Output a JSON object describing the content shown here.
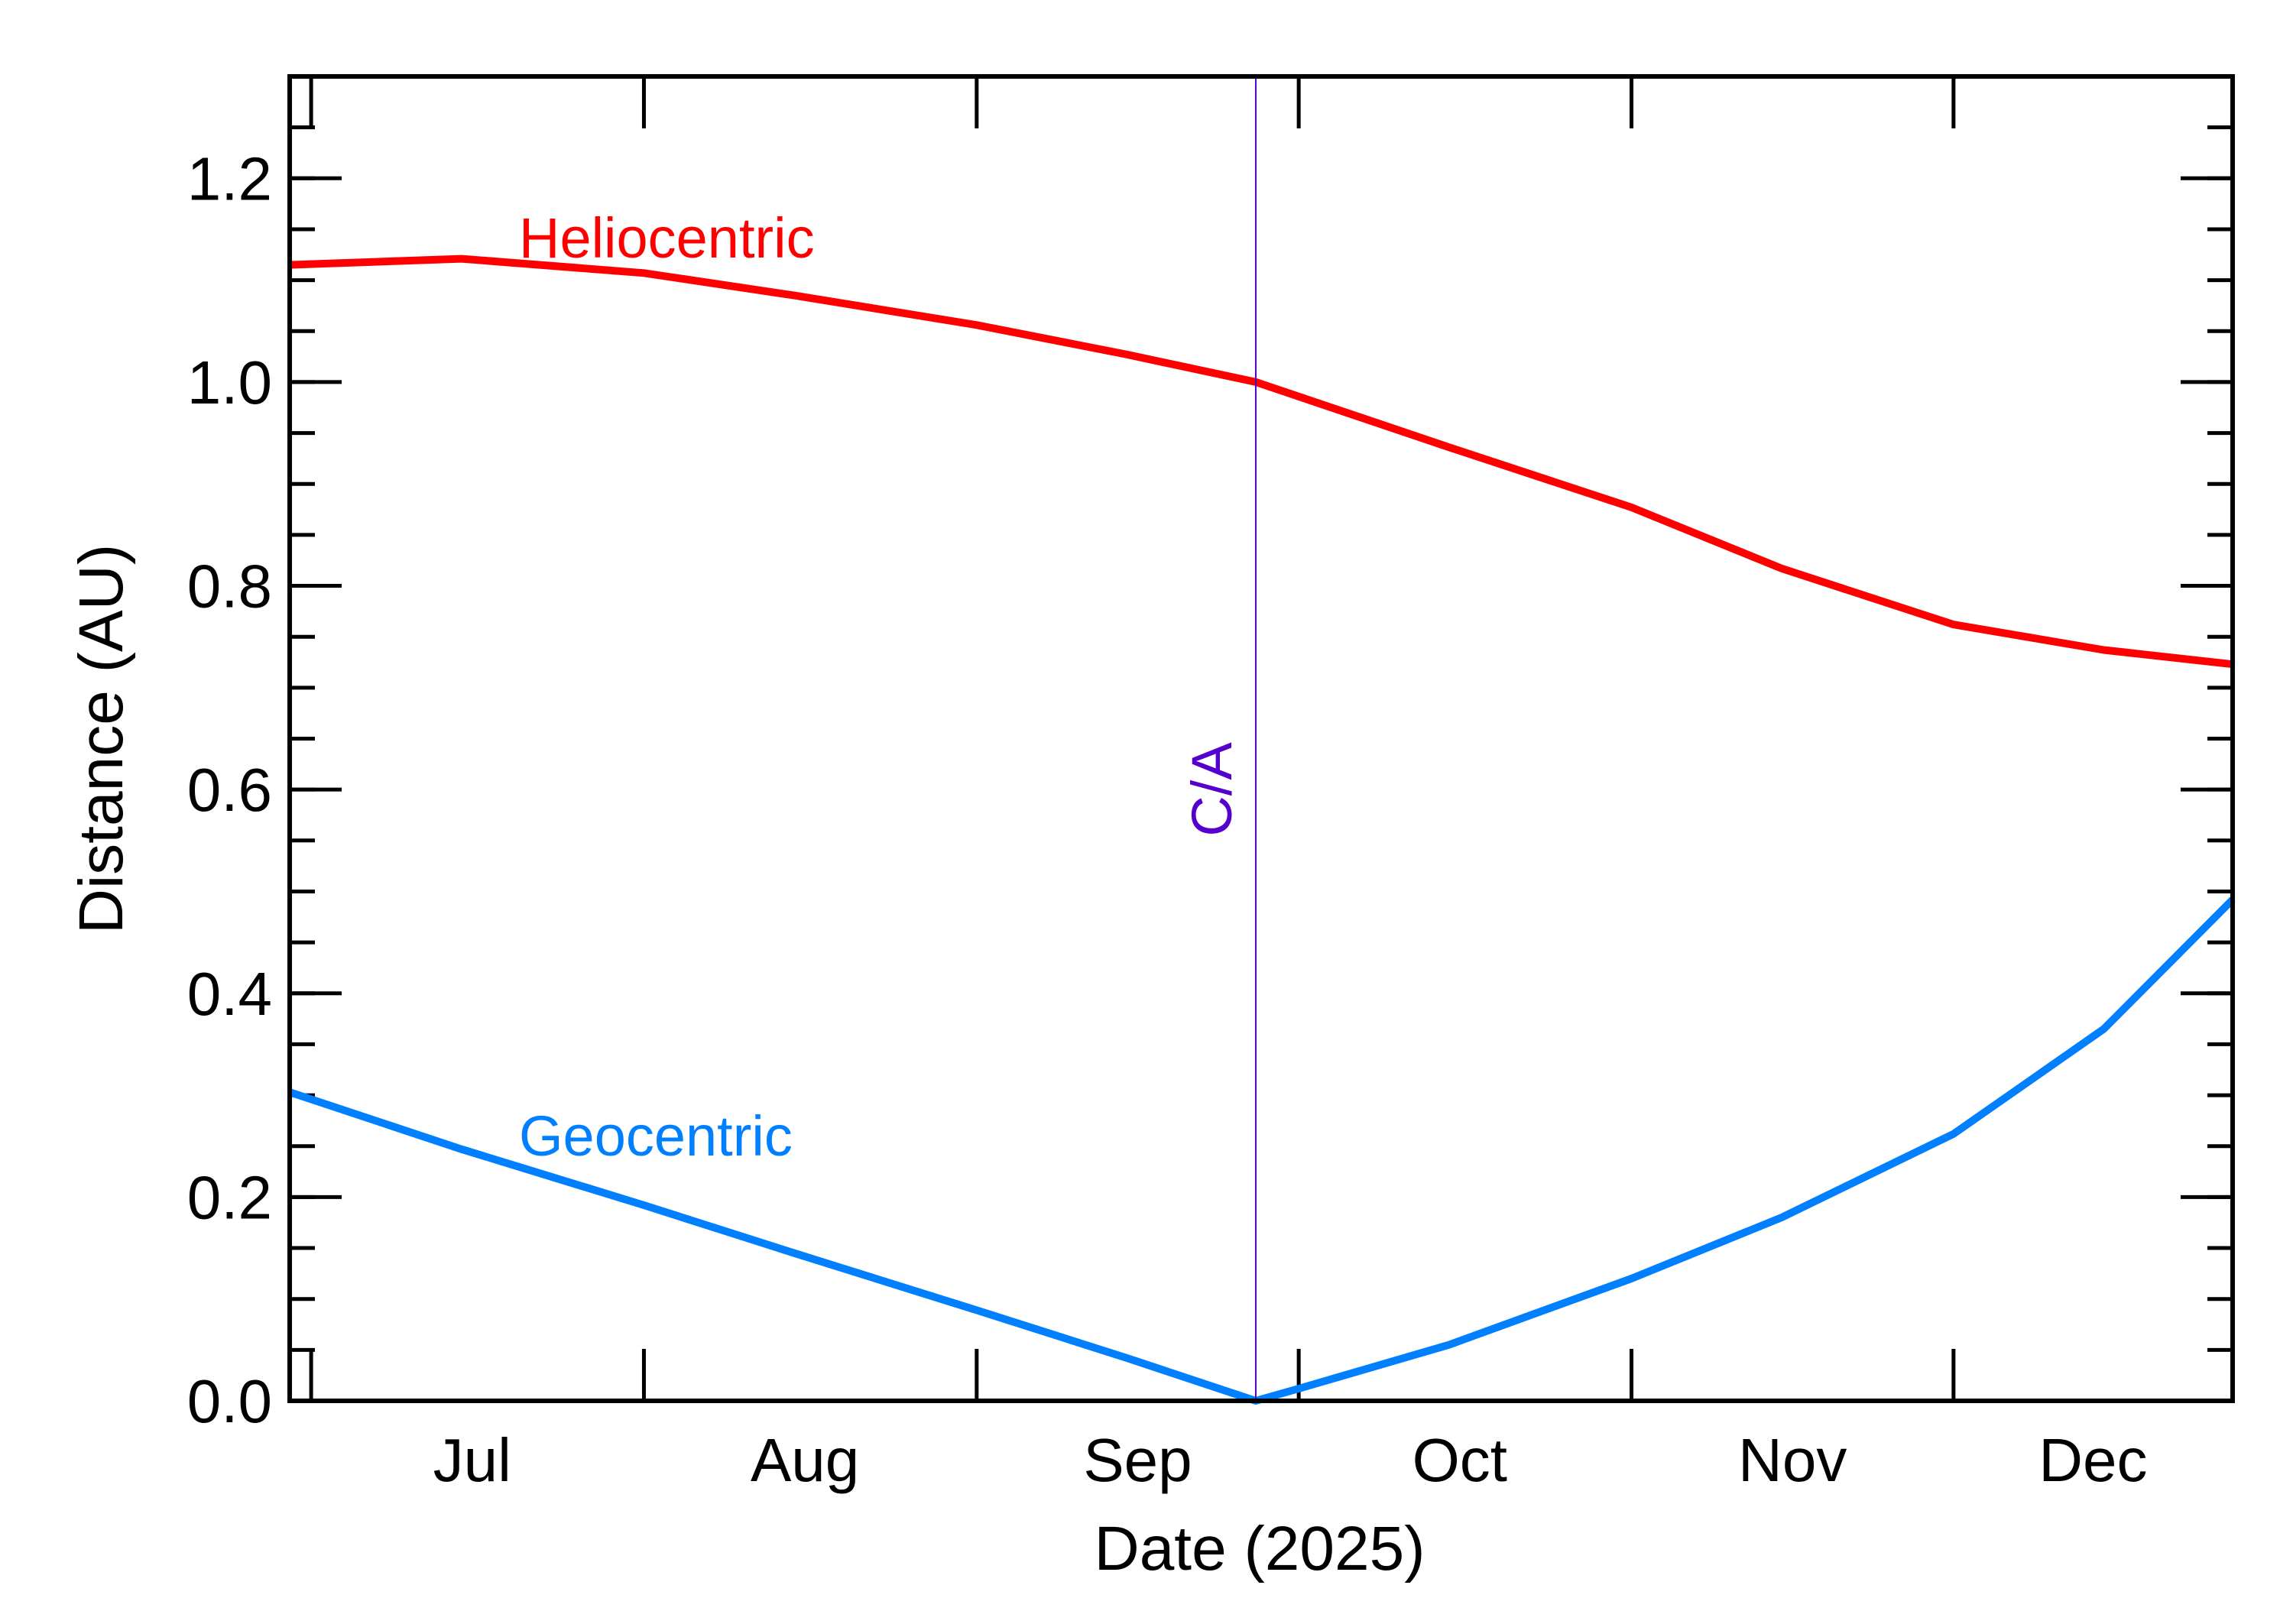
{
  "chart_data": {
    "type": "line",
    "title": "",
    "xlabel": "Date (2025)",
    "ylabel": "Distance (AU)",
    "xlim": [
      "2025-06-29",
      "2025-12-27"
    ],
    "ylim": [
      0,
      1.3
    ],
    "x_ticks": [
      {
        "date": "2025-07-01"
      },
      {
        "date": "2025-08-01"
      },
      {
        "date": "2025-09-01"
      },
      {
        "date": "2025-10-01"
      },
      {
        "date": "2025-11-01"
      },
      {
        "date": "2025-12-01"
      }
    ],
    "x_tick_labels": [
      {
        "label": "Jul",
        "date": "2025-07-16"
      },
      {
        "label": "Aug",
        "date": "2025-08-16"
      },
      {
        "label": "Sep",
        "date": "2025-09-16"
      },
      {
        "label": "Oct",
        "date": "2025-10-16"
      },
      {
        "label": "Nov",
        "date": "2025-11-16"
      },
      {
        "label": "Dec",
        "date": "2025-12-14"
      }
    ],
    "y_ticks": [
      "0.0",
      "0.2",
      "0.4",
      "0.6",
      "0.8",
      "1.0",
      "1.2"
    ],
    "y_minor_step": 0.05,
    "grid": false,
    "series": [
      {
        "name": "Heliocentric",
        "color": "#ff0000",
        "x": [
          "2025-06-29",
          "2025-07-15",
          "2025-08-01",
          "2025-08-15",
          "2025-09-01",
          "2025-09-15",
          "2025-09-27",
          "2025-10-15",
          "2025-11-01",
          "2025-11-15",
          "2025-12-01",
          "2025-12-15",
          "2025-12-27"
        ],
        "y": [
          1.115,
          1.121,
          1.107,
          1.085,
          1.056,
          1.027,
          1.0,
          0.936,
          0.877,
          0.817,
          0.762,
          0.737,
          0.723
        ]
      },
      {
        "name": "Geocentric",
        "color": "#0080ff",
        "x": [
          "2025-06-29",
          "2025-07-15",
          "2025-08-01",
          "2025-08-15",
          "2025-09-01",
          "2025-09-15",
          "2025-09-27",
          "2025-10-01",
          "2025-10-15",
          "2025-11-01",
          "2025-11-15",
          "2025-12-01",
          "2025-12-15",
          "2025-12-27"
        ],
        "y": [
          0.303,
          0.247,
          0.192,
          0.145,
          0.089,
          0.042,
          0.0,
          0.012,
          0.055,
          0.12,
          0.18,
          0.262,
          0.365,
          0.492
        ]
      }
    ],
    "annotations": [
      {
        "label": "C/A",
        "date": "2025-09-27",
        "color": "#5500cc"
      }
    ]
  }
}
